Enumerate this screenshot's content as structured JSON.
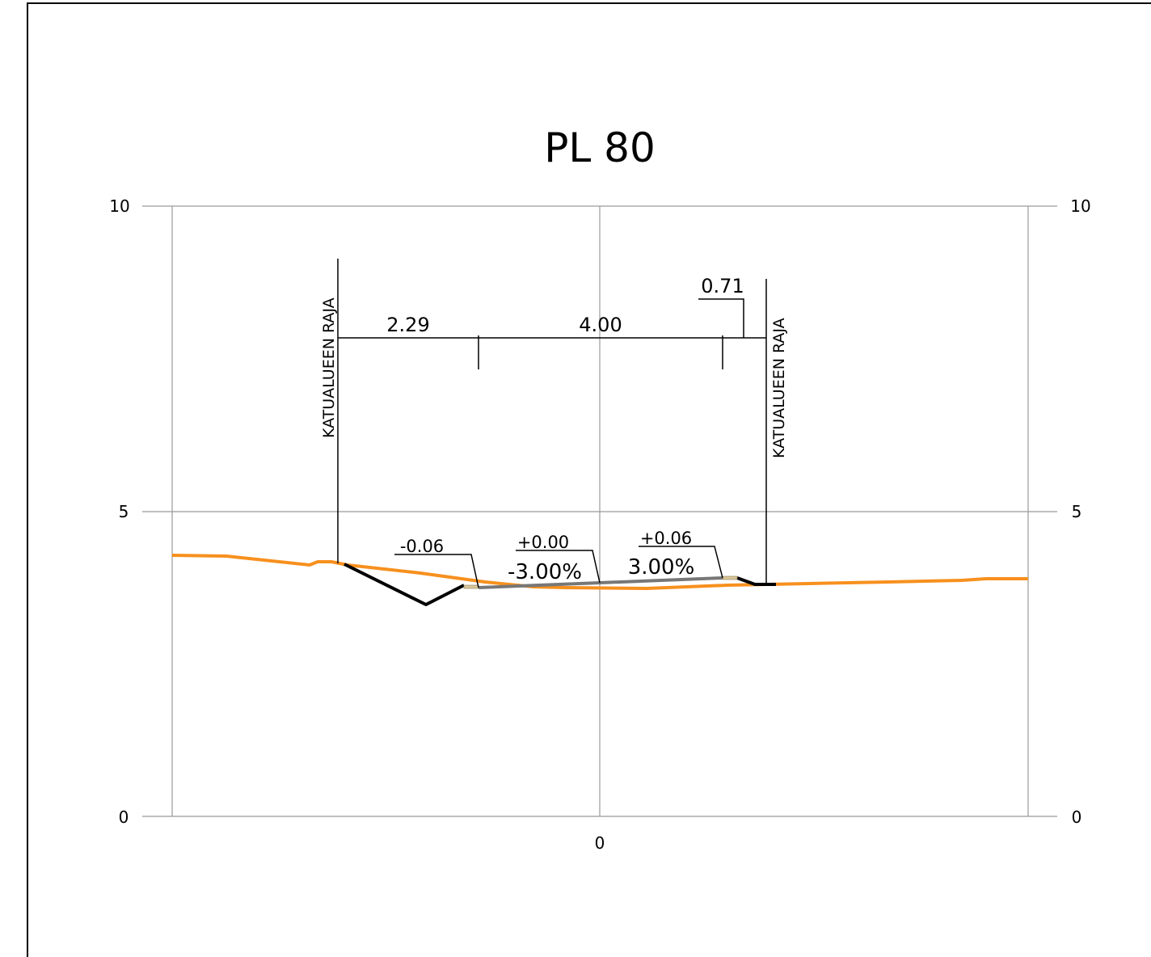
{
  "title": "PL 80",
  "y_ticks": [
    {
      "value": 10,
      "left_label": "10",
      "right_label": "10"
    },
    {
      "value": 5,
      "left_label": "5",
      "right_label": "5"
    },
    {
      "value": 0,
      "left_label": "0",
      "right_label": "0"
    }
  ],
  "x_center_label": "0",
  "boundary_label_left": "KATUALUEEN RAJA",
  "boundary_label_right": "KATUALUEEN RAJA",
  "dimensions": {
    "d1": "2.29",
    "d2": "4.00",
    "d3": "0.71"
  },
  "elevations": {
    "left": "-0.06",
    "center": "+0.00",
    "right": "+0.06"
  },
  "slopes": {
    "left": "-3.00%",
    "right": "3.00%"
  },
  "colors": {
    "ground": "#f7901e",
    "grid": "#9a9a9a",
    "structure": "#000000",
    "pavement": "#777777",
    "edge_fill": "#d9c79a"
  }
}
